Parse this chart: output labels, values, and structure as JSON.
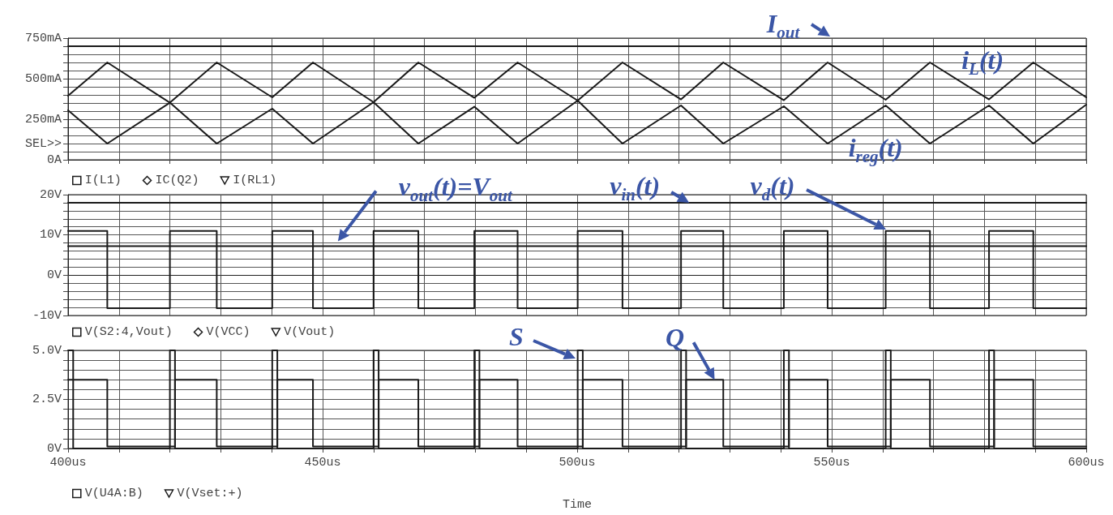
{
  "chart_data": [
    {
      "type": "line",
      "xlim": [
        400,
        600
      ],
      "xticks": [
        400,
        410,
        420,
        430,
        440,
        450,
        460,
        470,
        480,
        490,
        500,
        510,
        520,
        530,
        540,
        550,
        560,
        570,
        580,
        590,
        600
      ],
      "ylim": [
        0,
        750
      ],
      "yticks": [
        {
          "value": 0,
          "label": "0A"
        },
        {
          "value": 50,
          "label": null
        },
        {
          "value": 100,
          "label": "SEL>>"
        },
        {
          "value": 150,
          "label": null
        },
        {
          "value": 200,
          "label": null
        },
        {
          "value": 250,
          "label": "250mA"
        },
        {
          "value": 300,
          "label": null
        },
        {
          "value": 350,
          "label": null
        },
        {
          "value": 400,
          "label": null
        },
        {
          "value": 450,
          "label": null
        },
        {
          "value": 500,
          "label": "500mA"
        },
        {
          "value": 550,
          "label": null
        },
        {
          "value": 600,
          "label": null
        },
        {
          "value": 650,
          "label": null
        },
        {
          "value": 700,
          "label": null
        },
        {
          "value": 750,
          "label": "750mA"
        }
      ],
      "tick_labels": "y",
      "grid": true,
      "legend": "bottom",
      "series": [
        {
          "name": "I(L1)",
          "color": "#1a1a1a",
          "x": [
            400,
            407.7,
            420,
            429.2,
            440.1,
            448.1,
            460,
            468.8,
            479.8,
            488.3,
            500.1,
            508.9,
            520.4,
            528.7,
            540.6,
            549.2,
            560.6,
            569.3,
            580.9,
            589.6,
            600
          ],
          "values": [
            395,
            600,
            352,
            600,
            385,
            600,
            355,
            600,
            382,
            600,
            365,
            600,
            372,
            600,
            367,
            600,
            370,
            600,
            372,
            600,
            385
          ]
        },
        {
          "name": "IC(Q2)",
          "color": "#1a1a1a",
          "x": [
            400,
            407.7,
            420,
            429.2,
            440.1,
            448.1,
            460,
            468.8,
            479.8,
            488.3,
            500.1,
            508.9,
            520.4,
            528.7,
            540.6,
            549.2,
            560.6,
            569.3,
            580.9,
            589.6,
            600
          ],
          "values": [
            305,
            100,
            352,
            100,
            315,
            100,
            355,
            100,
            327,
            100,
            365,
            100,
            335,
            100,
            330,
            100,
            335,
            100,
            335,
            100,
            340
          ]
        },
        {
          "name": "I(RL1)",
          "color": "#1a1a1a",
          "x": [
            400,
            600
          ],
          "values": [
            700,
            700
          ]
        }
      ],
      "annotations": [
        {
          "text": "I$_{out}$",
          "x": 550,
          "y": 700
        },
        {
          "text": "i$_{L}$(t)",
          "x": 590,
          "y": 600
        },
        {
          "text": "i$_{reg}$(t)",
          "x": 569.3,
          "y": 100
        }
      ]
    },
    {
      "type": "line",
      "xlim": [
        400,
        600
      ],
      "xticks": [
        400,
        410,
        420,
        430,
        440,
        450,
        460,
        470,
        480,
        490,
        500,
        510,
        520,
        530,
        540,
        550,
        560,
        570,
        580,
        590,
        600
      ],
      "ylim": [
        -10,
        20
      ],
      "yticks": [
        {
          "value": -10,
          "label": "-10V"
        },
        {
          "value": -8,
          "label": null
        },
        {
          "value": -6,
          "label": null
        },
        {
          "value": -4,
          "label": null
        },
        {
          "value": -2,
          "label": null
        },
        {
          "value": 0,
          "label": "0V"
        },
        {
          "value": 2,
          "label": null
        },
        {
          "value": 4,
          "label": null
        },
        {
          "value": 6,
          "label": null
        },
        {
          "value": 8,
          "label": null
        },
        {
          "value": 10,
          "label": "10V"
        },
        {
          "value": 12,
          "label": null
        },
        {
          "value": 14,
          "label": null
        },
        {
          "value": 16,
          "label": null
        },
        {
          "value": 18,
          "label": null
        },
        {
          "value": 20,
          "label": "20V"
        }
      ],
      "tick_labels": "y",
      "grid": true,
      "legend": "bottom",
      "series": [
        {
          "name": "V(S2:4,Vout)",
          "type": "step",
          "color": "#1a1a1a",
          "x": [
            400,
            407.7,
            420,
            429.2,
            440.1,
            448.1,
            460,
            468.8,
            479.8,
            488.3,
            500.1,
            508.9,
            520.4,
            528.7,
            540.6,
            549.2,
            560.6,
            569.3,
            580.9,
            589.6,
            600
          ],
          "values": [
            11,
            -8.2,
            11,
            -8.2,
            11,
            -8.2,
            11,
            -8.2,
            11,
            -8.2,
            11,
            -8.2,
            11,
            -8.2,
            11,
            -8.2,
            11,
            -8.2,
            11,
            -8.2,
            -8.2
          ]
        },
        {
          "name": "V(VCC)",
          "color": "#1a1a1a",
          "x": [
            400,
            600
          ],
          "values": [
            18,
            18
          ]
        },
        {
          "name": "V(Vout)",
          "color": "#1a1a1a",
          "x": [
            400,
            600
          ],
          "values": [
            7.2,
            7.2
          ]
        }
      ],
      "annotations": [
        {
          "text": "v$_{out}$(t)=V$_{out}$",
          "x": 453,
          "y": 7.2
        },
        {
          "text": "v$_{in}$(t)",
          "x": 522,
          "y": 18
        },
        "v$_{d}$(t)"
      ]
    },
    {
      "type": "step",
      "xlim": [
        400,
        600
      ],
      "xticks": [
        {
          "value": 400,
          "label": "400us"
        },
        {
          "value": 410,
          "label": null
        },
        {
          "value": 420,
          "label": null
        },
        {
          "value": 430,
          "label": null
        },
        {
          "value": 440,
          "label": null
        },
        {
          "value": 450,
          "label": "450us"
        },
        {
          "value": 460,
          "label": null
        },
        {
          "value": 470,
          "label": null
        },
        {
          "value": 480,
          "label": null
        },
        {
          "value": 490,
          "label": null
        },
        {
          "value": 500,
          "label": "500us"
        },
        {
          "value": 510,
          "label": null
        },
        {
          "value": 520,
          "label": null
        },
        {
          "value": 530,
          "label": null
        },
        {
          "value": 540,
          "label": null
        },
        {
          "value": 550,
          "label": "550us"
        },
        {
          "value": 560,
          "label": null
        },
        {
          "value": 570,
          "label": null
        },
        {
          "value": 580,
          "label": null
        },
        {
          "value": 590,
          "label": null
        },
        {
          "value": 600,
          "label": "600us"
        }
      ],
      "ylim": [
        0,
        5
      ],
      "yticks": [
        {
          "value": 0,
          "label": "0V"
        },
        {
          "value": 0.5,
          "label": null
        },
        {
          "value": 1,
          "label": null
        },
        {
          "value": 1.5,
          "label": null
        },
        {
          "value": 2,
          "label": null
        },
        {
          "value": 2.5,
          "label": "2.5V"
        },
        {
          "value": 3,
          "label": null
        },
        {
          "value": 3.5,
          "label": null
        },
        {
          "value": 4,
          "label": null
        },
        {
          "value": 4.5,
          "label": null
        },
        {
          "value": 5,
          "label": "5.0V"
        }
      ],
      "xlabel": "Time",
      "grid": true,
      "legend": "bottom",
      "series": [
        {
          "name": "V(U4A:B)",
          "color": "#1a1a1a",
          "x": [
            400,
            407.7,
            421,
            429.2,
            441.1,
            448.1,
            461,
            468.8,
            480.8,
            488.3,
            501.1,
            508.9,
            521.4,
            528.7,
            541.6,
            549.2,
            561.6,
            569.3,
            581.9,
            589.6,
            600
          ],
          "values": [
            3.5,
            0.1,
            3.5,
            0.1,
            3.5,
            0.1,
            3.5,
            0.1,
            3.5,
            0.1,
            3.5,
            0.1,
            3.5,
            0.1,
            3.5,
            0.1,
            3.5,
            0.1,
            3.5,
            0.1,
            0.1
          ]
        },
        {
          "name": "V(Vset:+)",
          "color": "#1a1a1a",
          "x": [
            400,
            401,
            420,
            421,
            440.1,
            441.1,
            460,
            461,
            479.8,
            480.8,
            500.1,
            501.1,
            520.4,
            521.4,
            540.6,
            541.6,
            560.6,
            561.6,
            580.9,
            581.9,
            600
          ],
          "values": [
            5,
            0,
            5,
            0,
            5,
            0,
            5,
            0,
            5,
            0,
            5,
            0,
            5,
            0,
            5,
            0,
            5,
            0,
            5,
            0,
            0
          ]
        }
      ],
      "annotations": [
        {
          "text": "S",
          "x": 500,
          "y": 5
        },
        {
          "text": "Q",
          "x": 527,
          "y": 3.5
        }
      ]
    }
  ]
}
